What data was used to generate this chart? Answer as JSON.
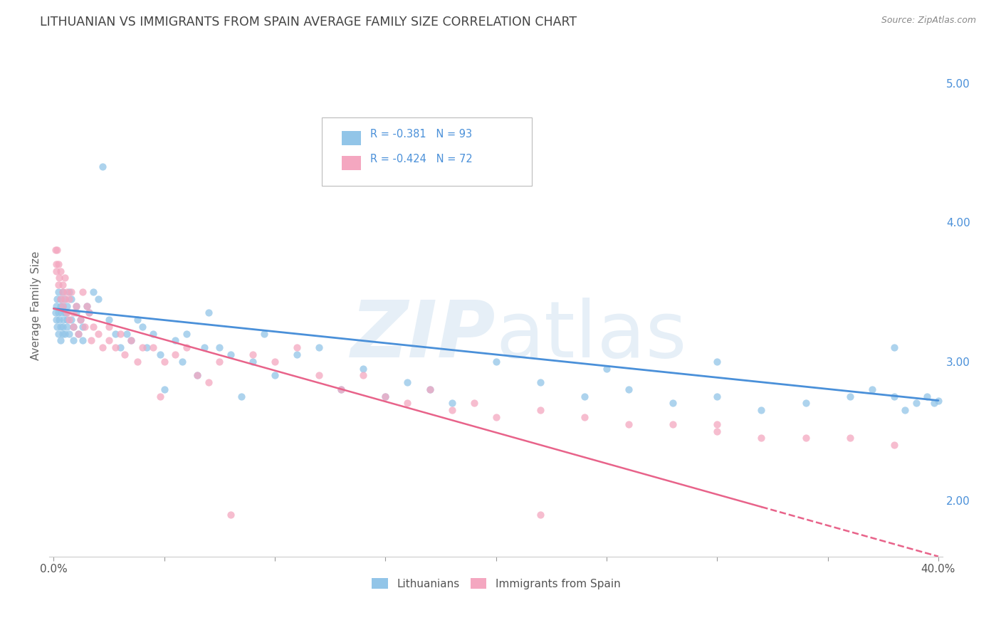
{
  "title": "LITHUANIAN VS IMMIGRANTS FROM SPAIN AVERAGE FAMILY SIZE CORRELATION CHART",
  "source": "Source: ZipAtlas.com",
  "ylabel": "Average Family Size",
  "right_yticks": [
    2.0,
    3.0,
    4.0,
    5.0
  ],
  "blue_color": "#92C5E8",
  "pink_color": "#F4A7C0",
  "blue_line_color": "#4A90D9",
  "pink_line_color": "#E8638A",
  "legend_text_color": "#4A90D9",
  "title_color": "#444444",
  "R_blue": "-0.381",
  "N_blue": "93",
  "R_pink": "-0.424",
  "N_pink": "72",
  "blue_scatter_x": [
    0.0008,
    0.001,
    0.0012,
    0.0015,
    0.0015,
    0.002,
    0.002,
    0.0022,
    0.0025,
    0.003,
    0.003,
    0.003,
    0.0032,
    0.0035,
    0.004,
    0.004,
    0.004,
    0.0042,
    0.0045,
    0.005,
    0.005,
    0.005,
    0.0055,
    0.006,
    0.006,
    0.006,
    0.007,
    0.007,
    0.008,
    0.008,
    0.009,
    0.009,
    0.01,
    0.01,
    0.011,
    0.012,
    0.013,
    0.013,
    0.015,
    0.016,
    0.018,
    0.02,
    0.022,
    0.025,
    0.028,
    0.03,
    0.033,
    0.035,
    0.038,
    0.04,
    0.042,
    0.045,
    0.048,
    0.05,
    0.055,
    0.058,
    0.06,
    0.065,
    0.068,
    0.07,
    0.075,
    0.08,
    0.085,
    0.09,
    0.095,
    0.1,
    0.11,
    0.12,
    0.13,
    0.14,
    0.15,
    0.16,
    0.17,
    0.18,
    0.2,
    0.22,
    0.24,
    0.26,
    0.28,
    0.3,
    0.32,
    0.34,
    0.36,
    0.37,
    0.38,
    0.385,
    0.39,
    0.395,
    0.398,
    0.4,
    0.38,
    0.3,
    0.25
  ],
  "blue_scatter_y": [
    3.35,
    3.4,
    3.3,
    3.25,
    3.45,
    3.2,
    3.35,
    3.5,
    3.3,
    3.4,
    3.25,
    3.15,
    3.45,
    3.35,
    3.5,
    3.25,
    3.2,
    3.4,
    3.3,
    3.35,
    3.2,
    3.45,
    3.35,
    3.3,
    3.25,
    3.4,
    3.5,
    3.2,
    3.45,
    3.3,
    3.15,
    3.25,
    3.4,
    3.35,
    3.2,
    3.3,
    3.25,
    3.15,
    3.4,
    3.35,
    3.5,
    3.45,
    4.4,
    3.3,
    3.2,
    3.1,
    3.2,
    3.15,
    3.3,
    3.25,
    3.1,
    3.2,
    3.05,
    2.8,
    3.15,
    3.0,
    3.2,
    2.9,
    3.1,
    3.35,
    3.1,
    3.05,
    2.75,
    3.0,
    3.2,
    2.9,
    3.05,
    3.1,
    2.8,
    2.95,
    2.75,
    2.85,
    2.8,
    2.7,
    3.0,
    2.85,
    2.75,
    2.8,
    2.7,
    2.75,
    2.65,
    2.7,
    2.75,
    2.8,
    2.75,
    2.65,
    2.7,
    2.75,
    2.7,
    2.72,
    3.1,
    3.0,
    2.95
  ],
  "pink_scatter_x": [
    0.0008,
    0.001,
    0.0012,
    0.0015,
    0.002,
    0.002,
    0.0025,
    0.003,
    0.003,
    0.004,
    0.004,
    0.004,
    0.005,
    0.005,
    0.006,
    0.006,
    0.007,
    0.007,
    0.008,
    0.009,
    0.009,
    0.01,
    0.011,
    0.012,
    0.013,
    0.014,
    0.015,
    0.016,
    0.017,
    0.018,
    0.02,
    0.022,
    0.025,
    0.025,
    0.028,
    0.03,
    0.032,
    0.035,
    0.038,
    0.04,
    0.045,
    0.048,
    0.05,
    0.055,
    0.06,
    0.065,
    0.07,
    0.075,
    0.08,
    0.09,
    0.1,
    0.11,
    0.12,
    0.13,
    0.14,
    0.15,
    0.16,
    0.17,
    0.18,
    0.19,
    0.2,
    0.22,
    0.24,
    0.26,
    0.28,
    0.3,
    0.32,
    0.34,
    0.36,
    0.38,
    0.3,
    0.22
  ],
  "pink_scatter_y": [
    3.8,
    3.7,
    3.65,
    3.8,
    3.55,
    3.7,
    3.6,
    3.45,
    3.65,
    3.5,
    3.55,
    3.4,
    3.6,
    3.45,
    3.5,
    3.35,
    3.45,
    3.3,
    3.5,
    3.35,
    3.25,
    3.4,
    3.2,
    3.3,
    3.5,
    3.25,
    3.4,
    3.35,
    3.15,
    3.25,
    3.2,
    3.1,
    3.25,
    3.15,
    3.1,
    3.2,
    3.05,
    3.15,
    3.0,
    3.1,
    3.1,
    2.75,
    3.0,
    3.05,
    3.1,
    2.9,
    2.85,
    3.0,
    1.9,
    3.05,
    3.0,
    3.1,
    2.9,
    2.8,
    2.9,
    2.75,
    2.7,
    2.8,
    2.65,
    2.7,
    2.6,
    2.65,
    2.6,
    2.55,
    2.55,
    2.5,
    2.45,
    2.45,
    2.45,
    2.4,
    2.55,
    1.9
  ],
  "blue_trend_x": [
    0.0,
    0.4
  ],
  "blue_trend_y": [
    3.38,
    2.72
  ],
  "pink_trend_x": [
    0.0,
    0.4
  ],
  "pink_trend_y": [
    3.38,
    1.6
  ],
  "xlim": [
    -0.002,
    0.402
  ],
  "ylim": [
    1.6,
    5.2
  ],
  "background_color": "#FFFFFF",
  "grid_color": "#DDDDDD",
  "legend_label_blue": "Lithuanians",
  "legend_label_pink": "Immigrants from Spain"
}
